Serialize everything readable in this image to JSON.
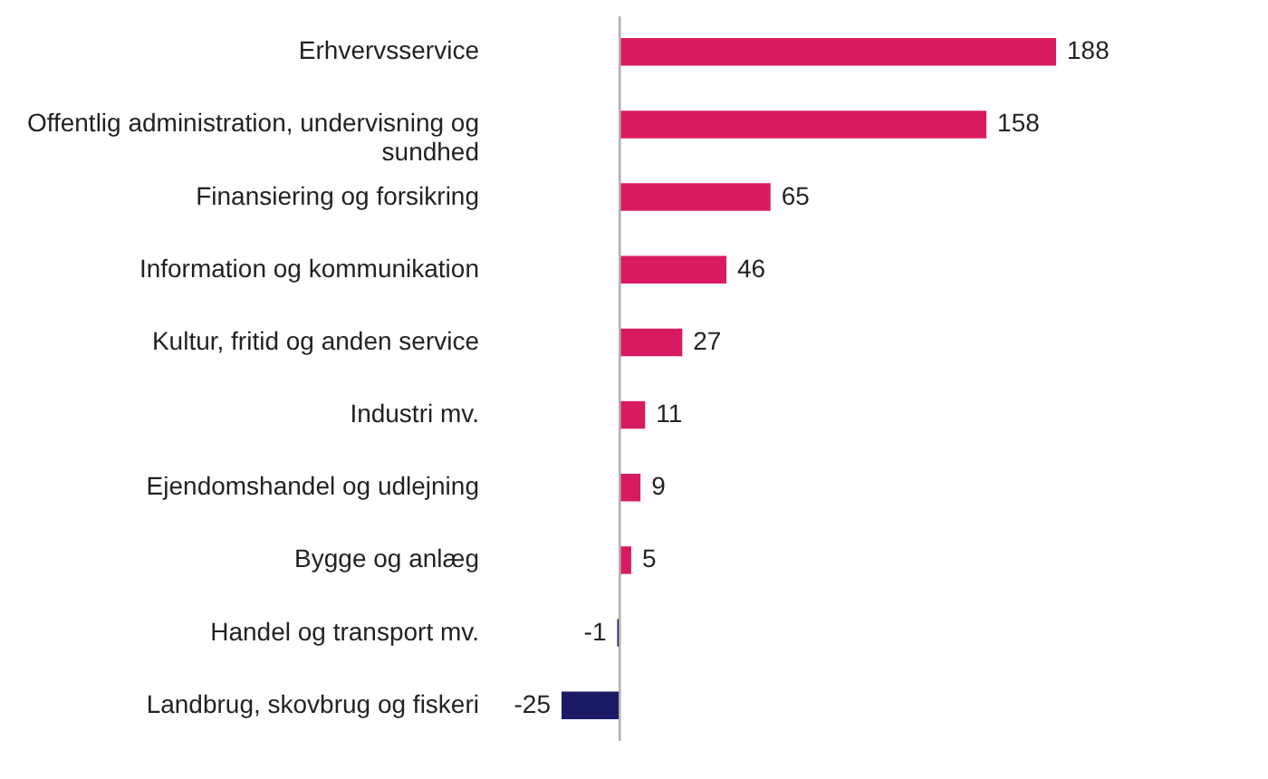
{
  "chart_data": {
    "type": "bar",
    "orientation": "horizontal",
    "data_labels": true,
    "categories": [
      "Erhvervsservice",
      "Offentlig administration, undervisning og sundhed",
      "Finansiering og forsikring",
      "Information og kommunikation",
      "Kultur, fritid og anden service",
      "Industri mv.",
      "Ejendomshandel og udlejning",
      "Bygge og anlæg",
      "Handel og transport mv.",
      "Landbrug, skovbrug og fiskeri"
    ],
    "values": [
      188,
      158,
      65,
      46,
      27,
      11,
      9,
      5,
      -1,
      -25
    ],
    "colors": [
      "#d81b60",
      "#d81b60",
      "#d81b60",
      "#d81b60",
      "#d81b60",
      "#d81b60",
      "#d81b60",
      "#d81b60",
      "#1b1a66",
      "#1b1a66"
    ]
  }
}
